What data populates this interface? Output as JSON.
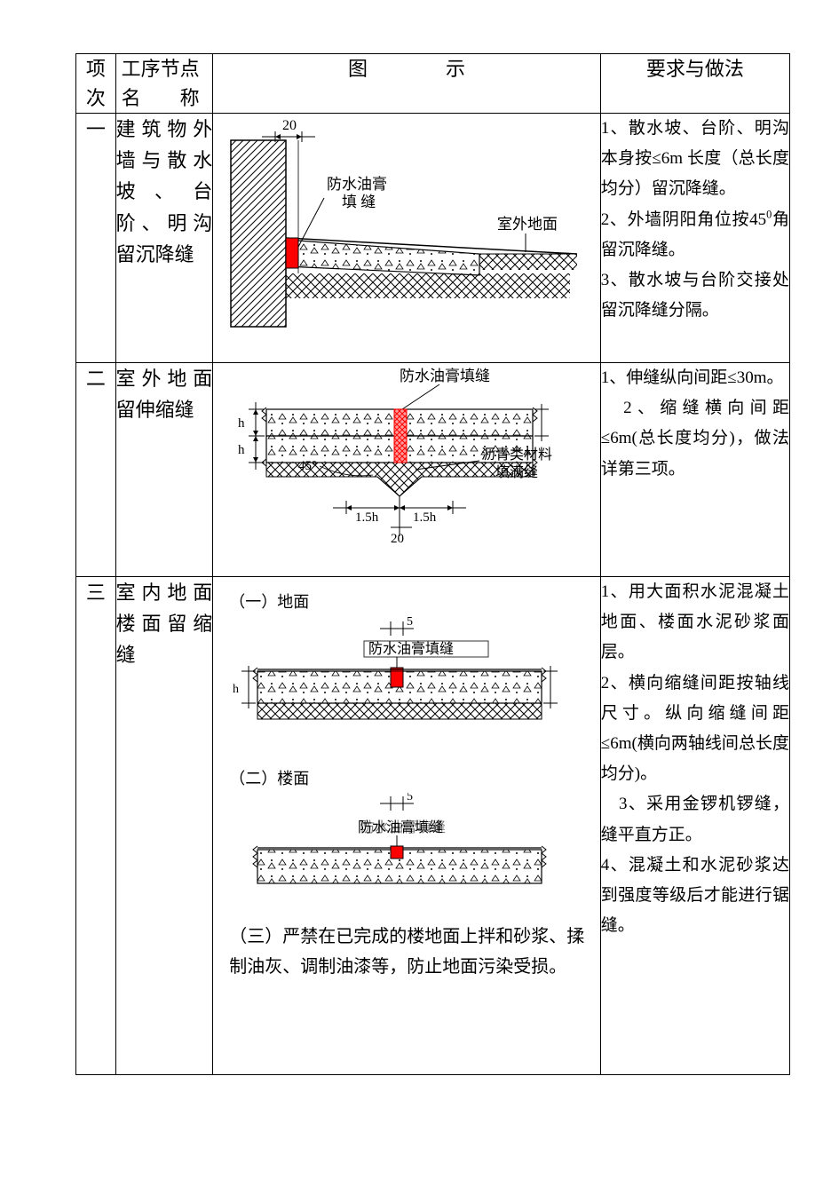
{
  "colors": {
    "text": "#000000",
    "bg": "#ffffff",
    "border": "#000000",
    "red": "#ff0000",
    "hatch": "#000000"
  },
  "header": {
    "col1_l1": "项",
    "col1_l2": "次",
    "col2_l1": "工序节点",
    "col2_l2": "名　　称",
    "col3": "图　　　　示",
    "col4": "要求与做法"
  },
  "rows": [
    {
      "idx": "一",
      "name": "建筑物外墙与散水坡、台阶、明沟留沉降缝",
      "diagram": {
        "dim_top": "20",
        "label1_l1": "防水油膏",
        "label1_l2": "　填 缝",
        "label2": "室外地面"
      },
      "req": [
        "1、散水坡、台阶、明沟本身按≤6m 长度（总长度均分）留沉降缝。",
        "2、外墙阴阳角位按45°角留沉降缝。",
        "3、散水坡与台阶交接处留沉降缝分隔。"
      ],
      "req_sup_index": 1,
      "req_sup_find": "45",
      "req_sup_replace": "0"
    },
    {
      "idx": "二",
      "name": "室外地面留伸缩缝",
      "diagram": {
        "label_top": "防水油膏填缝",
        "label_right_l1": "沥青类材料",
        "label_right_l2": "　填满缝",
        "h": "h",
        "angle": "45°",
        "dim_a": "1.5h",
        "dim_b": "1.5h",
        "dim_bottom": "20"
      },
      "req": [
        "1、伸缝纵向间距≤30m。",
        "　2、缩缝横向间距≤6m(总长度均分)，做法详第三项。"
      ]
    },
    {
      "idx": "三",
      "name": "室内地面楼面留缩缝",
      "diagram": {
        "part1_title": "（一）地面",
        "part1_dim": "5",
        "part1_label": "防水油膏填缝",
        "part1_h": "h",
        "part2_title": "（二）楼面",
        "part2_dim": "5",
        "part2_label": "防水油膏填缝",
        "part3": "（三）严禁在已完成的楼地面上拌和砂浆、揉制油灰、调制油漆等，防止地面污染受损。"
      },
      "req": [
        "1、用大面积水泥混凝土地面、楼面水泥砂浆面层。",
        "2、横向缩缝间距按轴线尺寸。纵向缩缝间距≤6m(横向两轴线间总长度均分)。",
        "　3、采用金锣机锣缝，缝平直方正。",
        "4、混凝土和水泥砂浆达到强度等级后才能进行锯缝。"
      ]
    }
  ]
}
